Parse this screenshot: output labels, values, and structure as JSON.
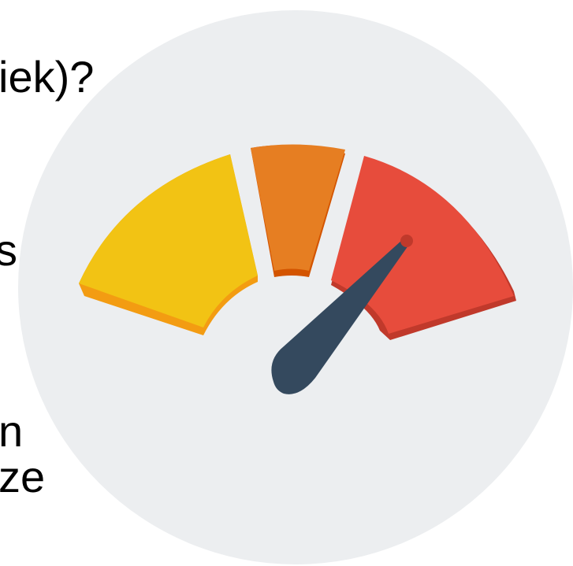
{
  "background_text": {
    "line1": "iek)?",
    "line2": "s",
    "line3": "n",
    "line4": "ze"
  },
  "gauge_icon": {
    "icon": "speedometer-gauge-icon",
    "colors": {
      "circle": "#ECEEF0",
      "segment_low": "#F2C314",
      "segment_low_edge": "#F39C12",
      "segment_mid": "#E67E22",
      "segment_mid_edge": "#D35400",
      "segment_high": "#E74C3C",
      "segment_high_edge": "#C0392B",
      "needle": "#34495E"
    },
    "level": 0.78
  }
}
